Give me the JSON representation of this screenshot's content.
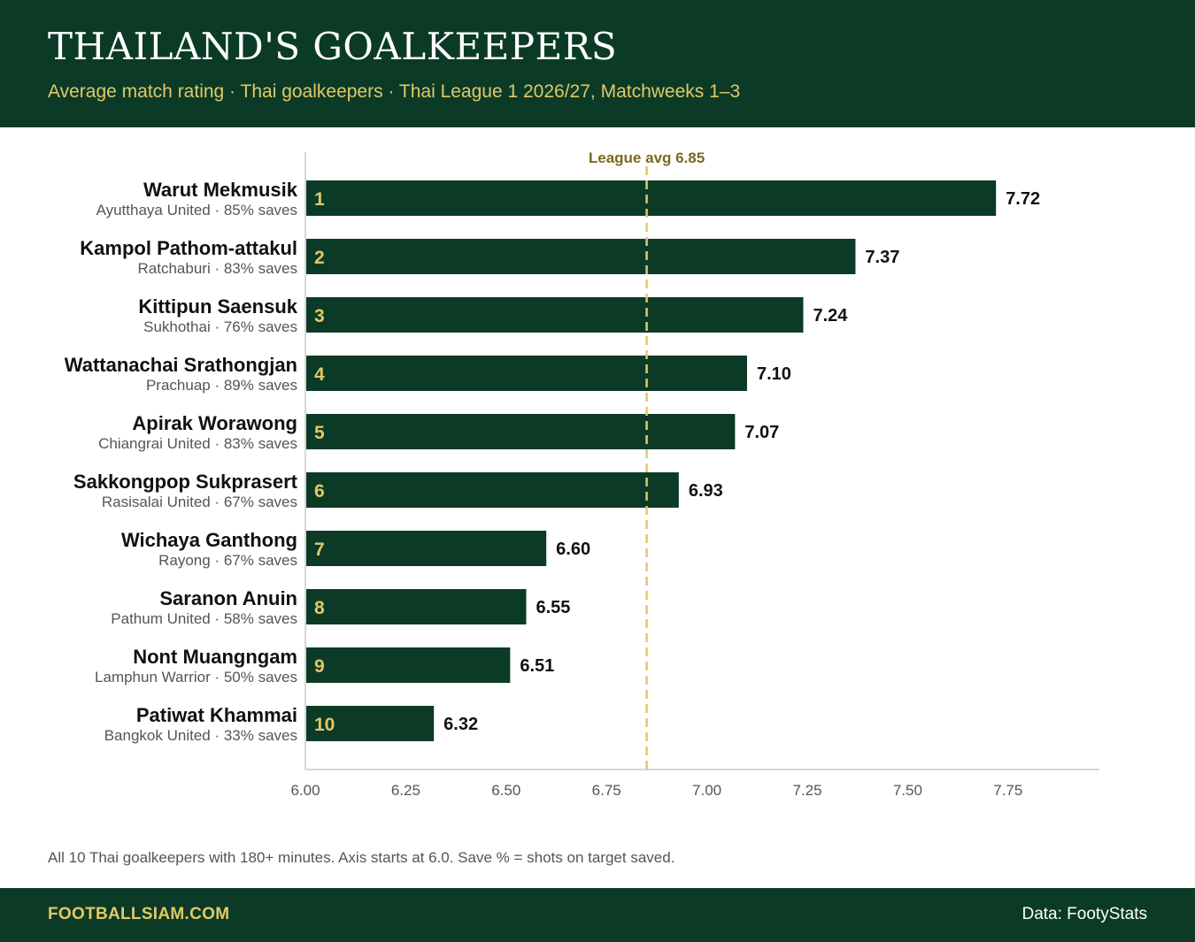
{
  "header": {
    "title": "THAILAND'S GOALKEEPERS",
    "subtitle": "Average match rating · Thai goalkeepers · Thai League 1 2026/27, Matchweeks 1–3"
  },
  "chart_data": {
    "type": "bar",
    "orientation": "horizontal",
    "xlim": [
      6.0,
      7.95
    ],
    "x_ticks": [
      "6.00",
      "6.25",
      "6.50",
      "6.75",
      "7.00",
      "7.25",
      "7.50",
      "7.75"
    ],
    "x_tick_values": [
      6.0,
      6.25,
      6.5,
      6.75,
      7.0,
      7.25,
      7.5,
      7.75
    ],
    "reference_line": {
      "value": 6.85,
      "label": "League avg 6.85"
    },
    "rows": [
      {
        "rank": "1",
        "name": "Warut Mekmusik",
        "meta": "Ayutthaya United · 85% saves",
        "value": 7.72,
        "value_label": "7.72"
      },
      {
        "rank": "2",
        "name": "Kampol Pathom-attakul",
        "meta": "Ratchaburi · 83% saves",
        "value": 7.37,
        "value_label": "7.37"
      },
      {
        "rank": "3",
        "name": "Kittipun Saensuk",
        "meta": "Sukhothai · 76% saves",
        "value": 7.24,
        "value_label": "7.24"
      },
      {
        "rank": "4",
        "name": "Wattanachai Srathongjan",
        "meta": "Prachuap · 89% saves",
        "value": 7.1,
        "value_label": "7.10"
      },
      {
        "rank": "5",
        "name": "Apirak Worawong",
        "meta": "Chiangrai United · 83% saves",
        "value": 7.07,
        "value_label": "7.07"
      },
      {
        "rank": "6",
        "name": "Sakkongpop Sukprasert",
        "meta": "Rasisalai United · 67% saves",
        "value": 6.93,
        "value_label": "6.93"
      },
      {
        "rank": "7",
        "name": "Wichaya Ganthong",
        "meta": "Rayong · 67% saves",
        "value": 6.6,
        "value_label": "6.60"
      },
      {
        "rank": "8",
        "name": "Saranon Anuin",
        "meta": "Pathum United · 58% saves",
        "value": 6.55,
        "value_label": "6.55"
      },
      {
        "rank": "9",
        "name": "Nont Muangngam",
        "meta": "Lamphun Warrior · 50% saves",
        "value": 6.51,
        "value_label": "6.51"
      },
      {
        "rank": "10",
        "name": "Patiwat Khammai",
        "meta": "Bangkok United · 33% saves",
        "value": 6.32,
        "value_label": "6.32"
      }
    ]
  },
  "footnote": "All 10 Thai goalkeepers with 180+ minutes. Axis starts at 6.0. Save % = shots on target saved.",
  "footer": {
    "brand": "FOOTBALLSIAM.COM",
    "source": "Data: FootyStats"
  },
  "colors": {
    "primary": "#0b3b27",
    "accent": "#e3c866"
  }
}
